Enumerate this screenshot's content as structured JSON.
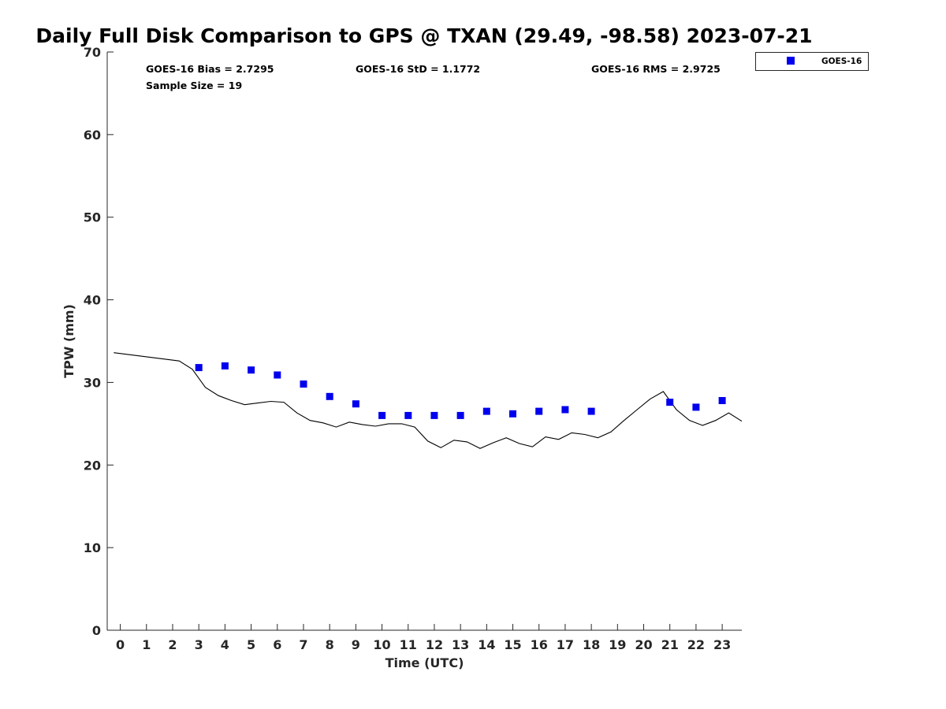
{
  "chart_data": {
    "type": "scatter",
    "title": "Daily Full Disk Comparison to GPS @ TXAN (29.49, -98.58) 2023-07-21",
    "xlabel": "Time (UTC)",
    "ylabel": "TPW (mm)",
    "xlim": [
      -0.5,
      23.75
    ],
    "ylim": [
      0,
      70
    ],
    "x_ticks": [
      "0",
      "1",
      "2",
      "3",
      "4",
      "5",
      "6",
      "7",
      "8",
      "9",
      "10",
      "11",
      "12",
      "13",
      "14",
      "15",
      "16",
      "17",
      "18",
      "19",
      "20",
      "21",
      "22",
      "23"
    ],
    "y_ticks": [
      "0",
      "10",
      "20",
      "30",
      "40",
      "50",
      "60",
      "70"
    ],
    "grid": false,
    "legend_position": "outside top-right",
    "stats": {
      "bias": "GOES-16 Bias = 2.7295",
      "std": "GOES-16 StD = 1.1772",
      "rms": "GOES-16 RMS = 2.9725",
      "sample": "Sample Size = 19"
    },
    "series": [
      {
        "name": "GOES-16",
        "kind": "scatter",
        "color": "#0000ee",
        "marker": "square",
        "x": [
          3,
          4,
          5,
          6,
          7,
          8,
          9,
          10,
          11,
          12,
          13,
          14,
          15,
          16,
          17,
          18,
          21,
          22,
          23
        ],
        "y": [
          31.8,
          32.0,
          31.5,
          30.9,
          29.8,
          28.3,
          27.4,
          26.0,
          26.0,
          26.0,
          26.0,
          26.5,
          26.2,
          26.5,
          26.7,
          26.5,
          27.6,
          27.0,
          27.8
        ]
      },
      {
        "kind": "line",
        "color": "#000000",
        "x": [
          -0.25,
          2.25,
          2.75,
          3.25,
          3.75,
          4.25,
          4.75,
          5.25,
          5.75,
          6.25,
          6.75,
          7.25,
          7.75,
          8.25,
          8.75,
          9.25,
          9.75,
          10.25,
          10.75,
          11.25,
          11.75,
          12.25,
          12.75,
          13.25,
          13.75,
          14.25,
          14.75,
          15.25,
          15.75,
          16.25,
          16.75,
          17.25,
          17.75,
          18.25,
          18.75,
          19.25,
          19.75,
          20.25,
          20.75,
          21.25,
          21.75,
          22.25,
          22.75,
          23.25,
          23.75
        ],
        "y": [
          33.6,
          32.6,
          31.6,
          29.4,
          28.4,
          27.8,
          27.3,
          27.5,
          27.7,
          27.6,
          26.3,
          25.4,
          25.1,
          24.6,
          25.2,
          24.9,
          24.7,
          25.0,
          25.0,
          24.6,
          22.9,
          22.1,
          23.0,
          22.8,
          22.0,
          22.7,
          23.3,
          22.6,
          22.2,
          23.4,
          23.1,
          23.9,
          23.7,
          23.3,
          24.0,
          25.4,
          26.7,
          28.0,
          28.9,
          26.7,
          25.4,
          24.8,
          25.4,
          26.3,
          25.3
        ]
      }
    ]
  }
}
